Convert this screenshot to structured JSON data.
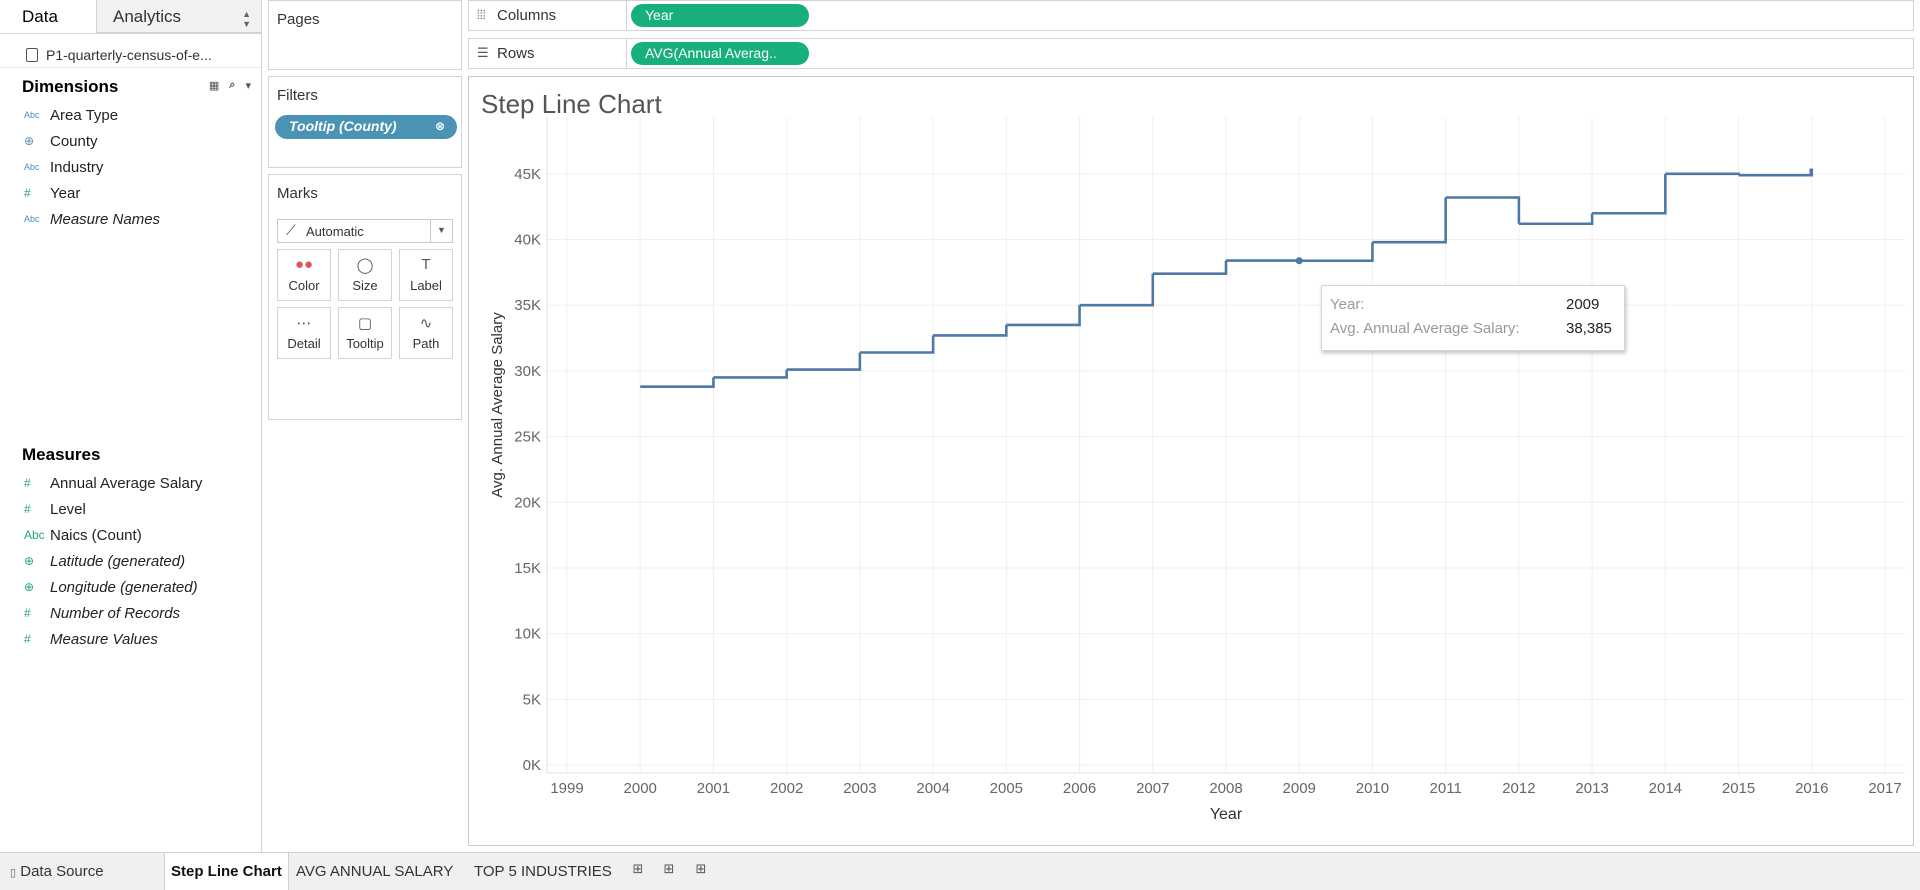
{
  "left_pane": {
    "tabs": [
      {
        "label": "Data"
      },
      {
        "label": "Analytics"
      }
    ],
    "datasource": "P1-quarterly-census-of-e...",
    "dimensions_title": "Dimensions",
    "dimensions": [
      {
        "label": "Area Type",
        "icon": "Abc",
        "italic": false
      },
      {
        "label": "County",
        "icon": "globe",
        "italic": false
      },
      {
        "label": "Industry",
        "icon": "Abc",
        "italic": false
      },
      {
        "label": "Year",
        "icon": "#",
        "italic": false
      },
      {
        "label": "Measure Names",
        "icon": "Abc",
        "italic": true
      }
    ],
    "measures_title": "Measures",
    "measures": [
      {
        "label": "Annual Average Salary",
        "icon": "#",
        "italic": false
      },
      {
        "label": "Level",
        "icon": "#",
        "italic": false
      },
      {
        "label": "Naics (Count)",
        "icon": "Abc",
        "italic": false
      },
      {
        "label": "Latitude (generated)",
        "icon": "globe",
        "italic": true
      },
      {
        "label": "Longitude (generated)",
        "icon": "globe",
        "italic": true
      },
      {
        "label": "Number of Records",
        "icon": "#",
        "italic": true
      },
      {
        "label": "Measure Values",
        "icon": "#",
        "italic": true
      }
    ]
  },
  "cards": {
    "pages_title": "Pages",
    "filters_title": "Filters",
    "filter_pill": "Tooltip (County)",
    "marks_title": "Marks",
    "mark_type": "Automatic",
    "mark_buttons": [
      {
        "label": "Color",
        "icon": "color-dots-icon"
      },
      {
        "label": "Size",
        "icon": "size-icon"
      },
      {
        "label": "Label",
        "icon": "label-icon"
      },
      {
        "label": "Detail",
        "icon": "detail-icon"
      },
      {
        "label": "Tooltip",
        "icon": "tooltip-icon"
      },
      {
        "label": "Path",
        "icon": "path-icon"
      }
    ]
  },
  "shelves": {
    "columns_label": "Columns",
    "columns_pill": "Year",
    "rows_label": "Rows",
    "rows_pill": "AVG(Annual Averag.."
  },
  "sheet_title": "Step Line Chart",
  "chart_data": {
    "type": "line",
    "step": true,
    "xlabel": "Year",
    "ylabel": "Avg. Annual Average Salary",
    "xlim": [
      1999,
      2017
    ],
    "ylim": [
      0,
      47500
    ],
    "x_ticks": [
      1999,
      2000,
      2001,
      2002,
      2003,
      2004,
      2005,
      2006,
      2007,
      2008,
      2009,
      2010,
      2011,
      2012,
      2013,
      2014,
      2015,
      2016,
      2017
    ],
    "y_ticks": [
      0,
      5000,
      10000,
      15000,
      20000,
      25000,
      30000,
      35000,
      40000,
      45000
    ],
    "y_tick_labels": [
      "0K",
      "5K",
      "10K",
      "15K",
      "20K",
      "25K",
      "30K",
      "35K",
      "40K",
      "45K"
    ],
    "grid": true,
    "color": "#4e79a7",
    "x": [
      2000,
      2001,
      2002,
      2003,
      2004,
      2005,
      2006,
      2007,
      2008,
      2009,
      2010,
      2011,
      2012,
      2013,
      2014,
      2015,
      2016
    ],
    "values": [
      28800,
      29500,
      30100,
      31400,
      32700,
      33500,
      35000,
      37400,
      38400,
      38385,
      39800,
      43200,
      41200,
      42000,
      45000,
      44900,
      45400
    ],
    "highlighted_point": {
      "x": 2009,
      "y": 38385
    }
  },
  "tooltip": {
    "year_key": "Year:",
    "year_value": "2009",
    "salary_key": "Avg. Annual Average Salary:",
    "salary_value": "38,385"
  },
  "bottom_bar": {
    "data_source_tab": "Data Source",
    "sheets": [
      "Step Line Chart",
      "AVG ANNUAL SALARY",
      "TOP 5 INDUSTRIES"
    ]
  }
}
